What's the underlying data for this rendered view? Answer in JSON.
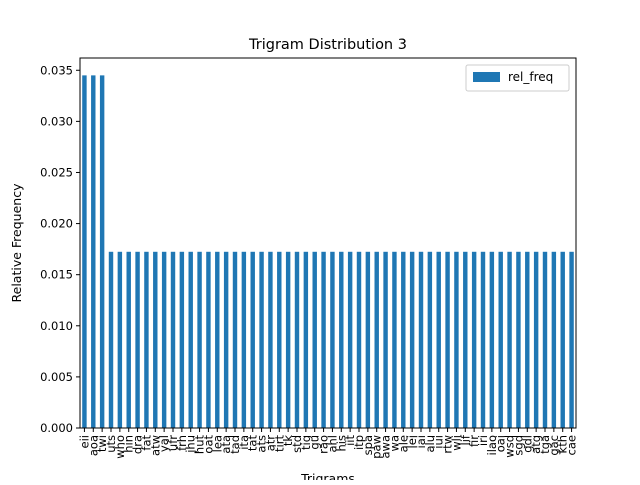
{
  "chart_data": {
    "type": "bar",
    "title": "Trigram Distribution 3",
    "xlabel": "Trigrams",
    "ylabel": "Relative Frequency",
    "ylim": [
      0,
      0.0362
    ],
    "yticks": [
      "0.000",
      "0.005",
      "0.010",
      "0.015",
      "0.020",
      "0.025",
      "0.030",
      "0.035"
    ],
    "grid": false,
    "legend_position": "top-right",
    "bar_color": "#1f77b4",
    "categories": [
      "eii",
      "aoa",
      "twi",
      "uts",
      "who",
      "hin",
      "dra",
      "fat",
      "atw",
      "yal",
      "ufr",
      "frh",
      "jhu",
      "hut",
      "oat",
      "lea",
      "ata",
      "tad",
      "ita",
      "tat",
      "ats",
      "atr",
      "tirt",
      "tk",
      "std",
      "tig",
      "gu",
      "rao",
      "ahl",
      "his",
      "iit",
      "itp",
      "spa",
      "paw",
      "awa",
      "wa",
      "ale",
      "lei",
      "iai",
      "alu",
      "iui",
      "rtw",
      "wli",
      "lif",
      "fir",
      "iri",
      "ilao",
      "oai",
      "wsd",
      "sgd",
      "gdl",
      "atg",
      "tga",
      "gac",
      "kth",
      "cae"
    ],
    "series": [
      {
        "name": "rel_freq",
        "values": [
          0.0345,
          0.0345,
          0.0345,
          0.01724,
          0.01724,
          0.01724,
          0.01724,
          0.01724,
          0.01724,
          0.01724,
          0.01724,
          0.01724,
          0.01724,
          0.01724,
          0.01724,
          0.01724,
          0.01724,
          0.01724,
          0.01724,
          0.01724,
          0.01724,
          0.01724,
          0.01724,
          0.01724,
          0.01724,
          0.01724,
          0.01724,
          0.01724,
          0.01724,
          0.01724,
          0.01724,
          0.01724,
          0.01724,
          0.01724,
          0.01724,
          0.01724,
          0.01724,
          0.01724,
          0.01724,
          0.01724,
          0.01724,
          0.01724,
          0.01724,
          0.01724,
          0.01724,
          0.01724,
          0.01724,
          0.01724,
          0.01724,
          0.01724,
          0.01724,
          0.01724,
          0.01724,
          0.01724,
          0.01724,
          0.01724
        ]
      }
    ]
  }
}
